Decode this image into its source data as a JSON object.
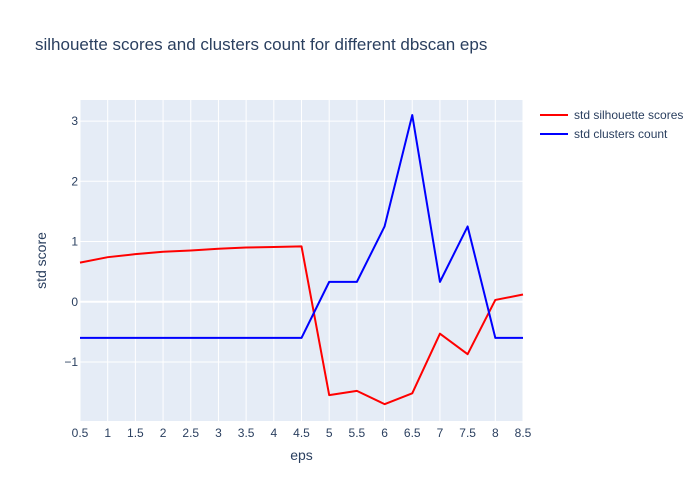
{
  "chart_data": {
    "type": "line",
    "title": "silhouette scores and clusters count for different dbscan eps",
    "xlabel": "eps",
    "ylabel": "std score",
    "x": [
      0.5,
      1,
      1.5,
      2,
      2.5,
      3,
      3.5,
      4,
      4.5,
      5,
      5.5,
      6,
      6.5,
      7,
      7.5,
      8,
      8.5
    ],
    "xlim": [
      0.5,
      8.5
    ],
    "ylim": [
      -1.98,
      3.35
    ],
    "x_ticks": [
      "0.5",
      "1",
      "1.5",
      "2",
      "2.5",
      "3",
      "3.5",
      "4",
      "4.5",
      "5",
      "5.5",
      "6",
      "6.5",
      "7",
      "7.5",
      "8",
      "8.5"
    ],
    "y_ticks": [
      {
        "value": -1,
        "label": "−1"
      },
      {
        "value": 0,
        "label": "0"
      },
      {
        "value": 1,
        "label": "1"
      },
      {
        "value": 2,
        "label": "2"
      },
      {
        "value": 3,
        "label": "3"
      }
    ],
    "grid": true,
    "legend_position": "top-right",
    "plot_background": "#e5ecf6",
    "series": [
      {
        "name": "std silhouette scores",
        "color": "#ff0000",
        "values": [
          0.65,
          0.74,
          0.79,
          0.83,
          0.85,
          0.88,
          0.9,
          0.91,
          0.92,
          -1.55,
          -1.48,
          -1.7,
          -1.52,
          -0.53,
          -0.87,
          0.03,
          0.12
        ]
      },
      {
        "name": "std clusters count",
        "color": "#0000ff",
        "values": [
          -0.6,
          -0.6,
          -0.6,
          -0.6,
          -0.6,
          -0.6,
          -0.6,
          -0.6,
          -0.6,
          0.33,
          0.33,
          1.25,
          3.1,
          0.33,
          1.25,
          -0.6,
          -0.6
        ]
      }
    ]
  }
}
